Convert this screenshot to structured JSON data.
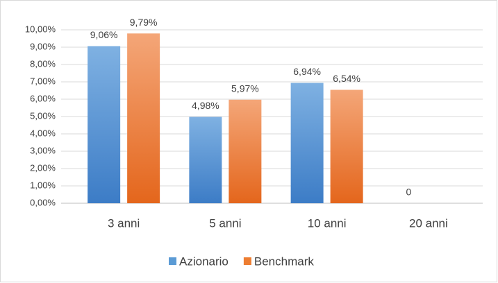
{
  "chart_data": {
    "type": "bar",
    "categories": [
      "3 anni",
      "5 anni",
      "10 anni",
      "20 anni"
    ],
    "series": [
      {
        "name": "Azionario",
        "color": "#5b9bd5",
        "values": [
          9.06,
          4.98,
          6.94,
          0
        ],
        "value_labels": [
          "9,06%",
          "4,98%",
          "6,94%",
          "0"
        ]
      },
      {
        "name": "Benchmark",
        "color": "#ed7d31",
        "values": [
          9.79,
          5.97,
          6.54,
          null
        ],
        "value_labels": [
          "9,79%",
          "5,97%",
          "6,54%",
          null
        ]
      }
    ],
    "ylim": [
      0,
      10
    ],
    "yticks": [
      {
        "value": 0,
        "label": "0,00%"
      },
      {
        "value": 1,
        "label": "1,00%"
      },
      {
        "value": 2,
        "label": "2,00%"
      },
      {
        "value": 3,
        "label": "3,00%"
      },
      {
        "value": 4,
        "label": "4,00%"
      },
      {
        "value": 5,
        "label": "5,00%"
      },
      {
        "value": 6,
        "label": "6,00%"
      },
      {
        "value": 7,
        "label": "7,00%"
      },
      {
        "value": 8,
        "label": "8,00%"
      },
      {
        "value": 9,
        "label": "9,00%"
      },
      {
        "value": 10,
        "label": "10,00%"
      }
    ],
    "grid": true,
    "legend": "bottom"
  }
}
